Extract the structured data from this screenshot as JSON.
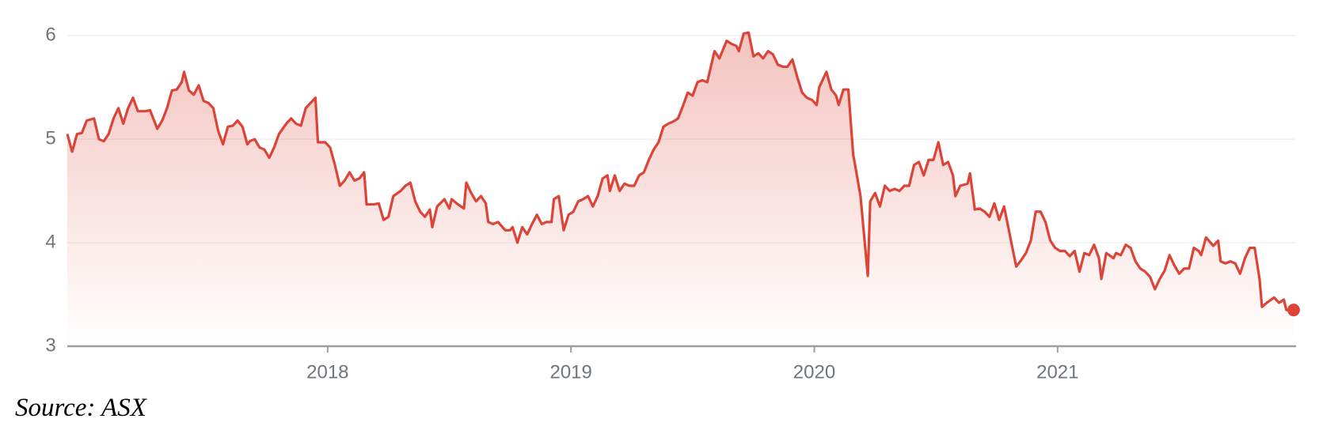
{
  "chart_data": {
    "type": "line",
    "source": "Source: ASX",
    "color": "#db4437",
    "grid": true,
    "xlim": [
      2016.93,
      2021.98
    ],
    "xticks": [
      2018,
      2019,
      2020,
      2021
    ],
    "ylim": [
      3,
      6.1
    ],
    "yticks": [
      3,
      4,
      5,
      6
    ],
    "x": [
      2016.93,
      2016.95,
      2016.97,
      2016.99,
      2017.01,
      2017.04,
      2017.06,
      2017.08,
      2017.1,
      2017.12,
      2017.14,
      2017.16,
      2017.18,
      2017.2,
      2017.22,
      2017.25,
      2017.27,
      2017.3,
      2017.32,
      2017.34,
      2017.36,
      2017.38,
      2017.4,
      2017.41,
      2017.43,
      2017.45,
      2017.47,
      2017.49,
      2017.51,
      2017.53,
      2017.55,
      2017.57,
      2017.59,
      2017.61,
      2017.63,
      2017.65,
      2017.67,
      2017.68,
      2017.7,
      2017.72,
      2017.74,
      2017.76,
      2017.78,
      2017.8,
      2017.83,
      2017.85,
      2017.87,
      2017.89,
      2017.91,
      2017.93,
      2017.95,
      2017.96,
      2017.99,
      2018.01,
      2018.03,
      2018.05,
      2018.07,
      2018.09,
      2018.11,
      2018.13,
      2018.15,
      2018.16,
      2018.19,
      2018.21,
      2018.23,
      2018.25,
      2018.27,
      2018.3,
      2018.32,
      2018.34,
      2018.36,
      2018.38,
      2018.4,
      2018.42,
      2018.43,
      2018.45,
      2018.48,
      2018.5,
      2018.51,
      2018.53,
      2018.56,
      2018.57,
      2018.59,
      2018.61,
      2018.63,
      2018.65,
      2018.66,
      2018.68,
      2018.7,
      2018.73,
      2018.75,
      2018.76,
      2018.78,
      2018.8,
      2018.82,
      2018.84,
      2018.86,
      2018.88,
      2018.9,
      2018.92,
      2018.93,
      2018.95,
      2018.97,
      2018.99,
      2019.01,
      2019.03,
      2019.05,
      2019.07,
      2019.09,
      2019.11,
      2019.13,
      2019.15,
      2019.16,
      2019.18,
      2019.2,
      2019.22,
      2019.24,
      2019.26,
      2019.28,
      2019.3,
      2019.32,
      2019.34,
      2019.36,
      2019.38,
      2019.4,
      2019.42,
      2019.44,
      2019.46,
      2019.48,
      2019.5,
      2019.52,
      2019.54,
      2019.56,
      2019.58,
      2019.59,
      2019.61,
      2019.64,
      2019.66,
      2019.68,
      2019.69,
      2019.71,
      2019.73,
      2019.75,
      2019.77,
      2019.79,
      2019.81,
      2019.83,
      2019.85,
      2019.87,
      2019.89,
      2019.91,
      2019.93,
      2019.95,
      2019.97,
      2019.99,
      2020.01,
      2020.02,
      2020.05,
      2020.07,
      2020.09,
      2020.1,
      2020.12,
      2020.14,
      2020.16,
      2020.17,
      2020.19,
      2020.22,
      2020.23,
      2020.25,
      2020.27,
      2020.29,
      2020.31,
      2020.33,
      2020.35,
      2020.37,
      2020.39,
      2020.41,
      2020.43,
      2020.45,
      2020.47,
      2020.49,
      2020.51,
      2020.53,
      2020.55,
      2020.57,
      2020.58,
      2020.6,
      2020.63,
      2020.64,
      2020.66,
      2020.68,
      2020.7,
      2020.72,
      2020.74,
      2020.76,
      2020.78,
      2020.8,
      2020.81,
      2020.83,
      2020.85,
      2020.87,
      2020.89,
      2020.91,
      2020.93,
      2020.95,
      2020.97,
      2020.99,
      2021.01,
      2021.03,
      2021.05,
      2021.07,
      2021.09,
      2021.11,
      2021.13,
      2021.15,
      2021.17,
      2021.18,
      2021.2,
      2021.23,
      2021.24,
      2021.26,
      2021.28,
      2021.3,
      2021.32,
      2021.34,
      2021.36,
      2021.38,
      2021.4,
      2021.42,
      2021.44,
      2021.46,
      2021.48,
      2021.5,
      2021.52,
      2021.54,
      2021.56,
      2021.58,
      2021.59,
      2021.61,
      2021.64,
      2021.66,
      2021.67,
      2021.69,
      2021.71,
      2021.73,
      2021.75,
      2021.77,
      2021.79,
      2021.81,
      2021.83,
      2021.84,
      2021.86,
      2021.89,
      2021.91,
      2021.93,
      2021.94,
      2021.97
    ],
    "values": [
      5.05,
      4.88,
      5.05,
      5.06,
      5.18,
      5.2,
      5.0,
      4.98,
      5.05,
      5.2,
      5.3,
      5.15,
      5.3,
      5.4,
      5.27,
      5.27,
      5.28,
      5.1,
      5.18,
      5.3,
      5.47,
      5.48,
      5.55,
      5.65,
      5.47,
      5.43,
      5.52,
      5.37,
      5.35,
      5.3,
      5.08,
      4.95,
      5.12,
      5.13,
      5.18,
      5.12,
      4.95,
      4.98,
      5.0,
      4.92,
      4.9,
      4.82,
      4.92,
      5.05,
      5.15,
      5.2,
      5.15,
      5.13,
      5.3,
      5.35,
      5.4,
      4.97,
      4.97,
      4.92,
      4.75,
      4.55,
      4.6,
      4.68,
      4.6,
      4.62,
      4.68,
      4.37,
      4.37,
      4.38,
      4.22,
      4.25,
      4.45,
      4.5,
      4.55,
      4.58,
      4.4,
      4.3,
      4.25,
      4.32,
      4.15,
      4.35,
      4.42,
      4.33,
      4.42,
      4.38,
      4.33,
      4.58,
      4.48,
      4.4,
      4.45,
      4.38,
      4.2,
      4.18,
      4.2,
      4.12,
      4.12,
      4.15,
      4.0,
      4.15,
      4.08,
      4.18,
      4.27,
      4.18,
      4.2,
      4.2,
      4.42,
      4.45,
      4.12,
      4.27,
      4.3,
      4.4,
      4.42,
      4.45,
      4.35,
      4.45,
      4.62,
      4.65,
      4.5,
      4.65,
      4.5,
      4.57,
      4.55,
      4.55,
      4.65,
      4.68,
      4.8,
      4.9,
      4.97,
      5.12,
      5.15,
      5.17,
      5.2,
      5.32,
      5.45,
      5.42,
      5.55,
      5.57,
      5.55,
      5.75,
      5.85,
      5.78,
      5.95,
      5.92,
      5.9,
      5.85,
      6.02,
      6.03,
      5.8,
      5.83,
      5.78,
      5.85,
      5.82,
      5.72,
      5.7,
      5.7,
      5.77,
      5.6,
      5.45,
      5.4,
      5.38,
      5.33,
      5.5,
      5.65,
      5.48,
      5.42,
      5.33,
      5.48,
      5.48,
      4.85,
      4.72,
      4.45,
      3.68,
      4.4,
      4.48,
      4.35,
      4.55,
      4.5,
      4.52,
      4.5,
      4.55,
      4.55,
      4.75,
      4.78,
      4.65,
      4.8,
      4.8,
      4.97,
      4.75,
      4.78,
      4.65,
      4.45,
      4.55,
      4.57,
      4.67,
      4.32,
      4.33,
      4.3,
      4.25,
      4.38,
      4.22,
      4.35,
      4.12,
      4.0,
      3.77,
      3.83,
      3.9,
      4.02,
      4.3,
      4.3,
      4.2,
      4.02,
      3.95,
      3.92,
      3.92,
      3.87,
      3.92,
      3.72,
      3.9,
      3.88,
      3.98,
      3.85,
      3.65,
      3.9,
      3.85,
      3.9,
      3.88,
      3.98,
      3.95,
      3.82,
      3.75,
      3.72,
      3.67,
      3.55,
      3.65,
      3.73,
      3.88,
      3.78,
      3.7,
      3.75,
      3.75,
      3.95,
      3.92,
      3.88,
      4.05,
      3.97,
      4.02,
      3.82,
      3.8,
      3.82,
      3.8,
      3.7,
      3.85,
      3.95,
      3.95,
      3.65,
      3.38,
      3.42,
      3.47,
      3.42,
      3.45,
      3.35,
      3.35
    ]
  }
}
